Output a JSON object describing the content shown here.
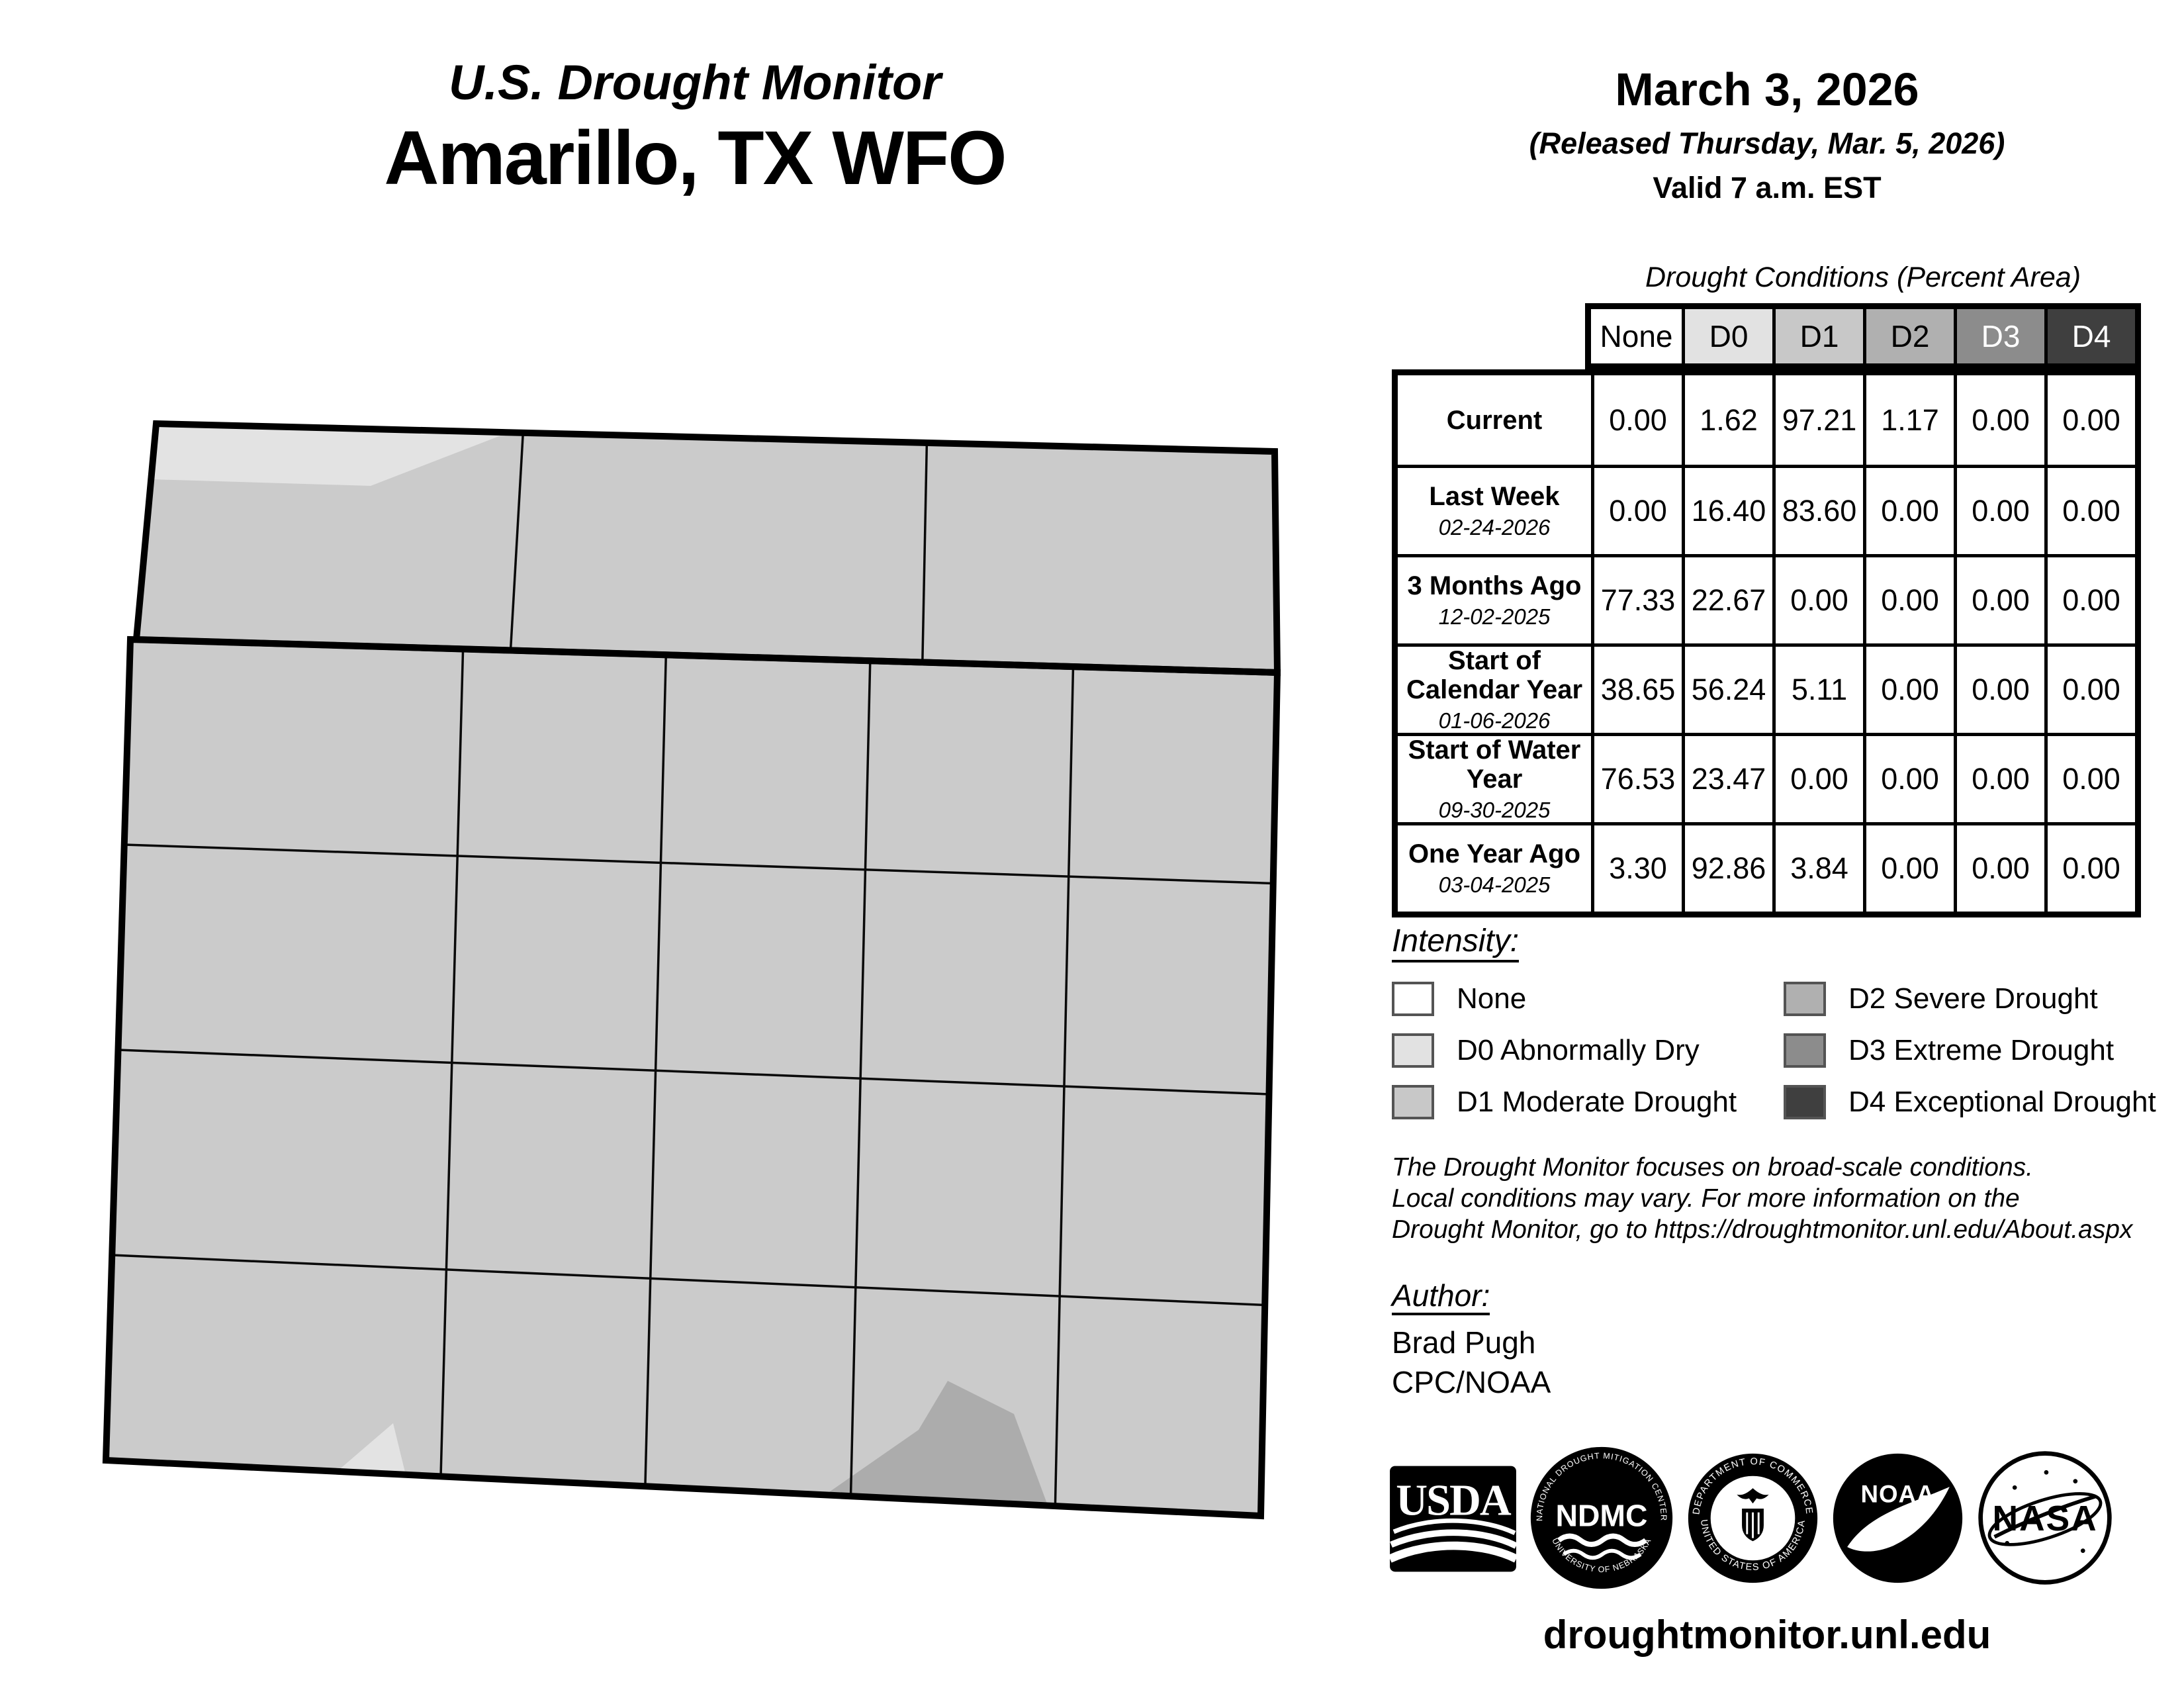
{
  "header": {
    "report_title": "U.S. Drought Monitor",
    "region_title": "Amarillo, TX WFO",
    "date": "March 3, 2026",
    "released": "(Released Thursday, Mar. 5, 2026)",
    "valid": "Valid 7 a.m. EST"
  },
  "table": {
    "title": "Drought Conditions (Percent Area)",
    "columns": [
      "None",
      "D0",
      "D1",
      "D2",
      "D3",
      "D4"
    ],
    "column_colors": [
      "#ffffff",
      "#e2e2e2",
      "#c8c8c8",
      "#b0b0b0",
      "#8c8c8c",
      "#3f3f3f"
    ],
    "column_text_colors": [
      "#000000",
      "#000000",
      "#000000",
      "#000000",
      "#ffffff",
      "#ffffff"
    ],
    "rows": [
      {
        "label": "Current",
        "date": "",
        "values": [
          "0.00",
          "1.62",
          "97.21",
          "1.17",
          "0.00",
          "0.00"
        ]
      },
      {
        "label": "Last Week",
        "date": "02-24-2026",
        "values": [
          "0.00",
          "16.40",
          "83.60",
          "0.00",
          "0.00",
          "0.00"
        ]
      },
      {
        "label": "3 Months Ago",
        "date": "12-02-2025",
        "values": [
          "77.33",
          "22.67",
          "0.00",
          "0.00",
          "0.00",
          "0.00"
        ]
      },
      {
        "label": "Start of Calendar Year",
        "date": "01-06-2026",
        "values": [
          "38.65",
          "56.24",
          "5.11",
          "0.00",
          "0.00",
          "0.00"
        ]
      },
      {
        "label": "Start of Water Year",
        "date": "09-30-2025",
        "values": [
          "76.53",
          "23.47",
          "0.00",
          "0.00",
          "0.00",
          "0.00"
        ]
      },
      {
        "label": "One Year Ago",
        "date": "03-04-2025",
        "values": [
          "3.30",
          "92.86",
          "3.84",
          "0.00",
          "0.00",
          "0.00"
        ]
      }
    ]
  },
  "legend": {
    "title": "Intensity:",
    "items": [
      {
        "label": "None",
        "color": "#ffffff"
      },
      {
        "label": "D0 Abnormally Dry",
        "color": "#e2e2e2"
      },
      {
        "label": "D1 Moderate Drought",
        "color": "#c8c8c8"
      },
      {
        "label": "D2 Severe Drought",
        "color": "#b0b0b0"
      },
      {
        "label": "D3 Extreme Drought",
        "color": "#8c8c8c"
      },
      {
        "label": "D4 Exceptional Drought",
        "color": "#3f3f3f"
      }
    ]
  },
  "disclaimer": {
    "line1": "The Drought Monitor focuses on broad-scale conditions.",
    "line2": "Local conditions may vary. For more information on the",
    "line3": "Drought Monitor, go to https://droughtmonitor.unl.edu/About.aspx"
  },
  "author": {
    "title": "Author:",
    "name": "Brad Pugh",
    "org": "CPC/NOAA"
  },
  "logos": {
    "usda": "USDA",
    "ndmc": "NDMC",
    "ndmc_ring_top": "NATIONAL DROUGHT MITIGATION CENTER",
    "ndmc_ring_bottom": "UNIVERSITY OF NEBRASKA",
    "doc_ring_top": "DEPARTMENT OF COMMERCE",
    "doc_ring_bottom": "UNITED STATES OF AMERICA",
    "noaa": "NOAA",
    "nasa": "NASA"
  },
  "footer": {
    "url": "droughtmonitor.unl.edu"
  },
  "map": {
    "region": "Amarillo, TX WFO counties",
    "fills": {
      "none": "#ffffff",
      "d0": "#e3e3e3",
      "d1": "#cbcbcb",
      "d2": "#acacac"
    }
  }
}
